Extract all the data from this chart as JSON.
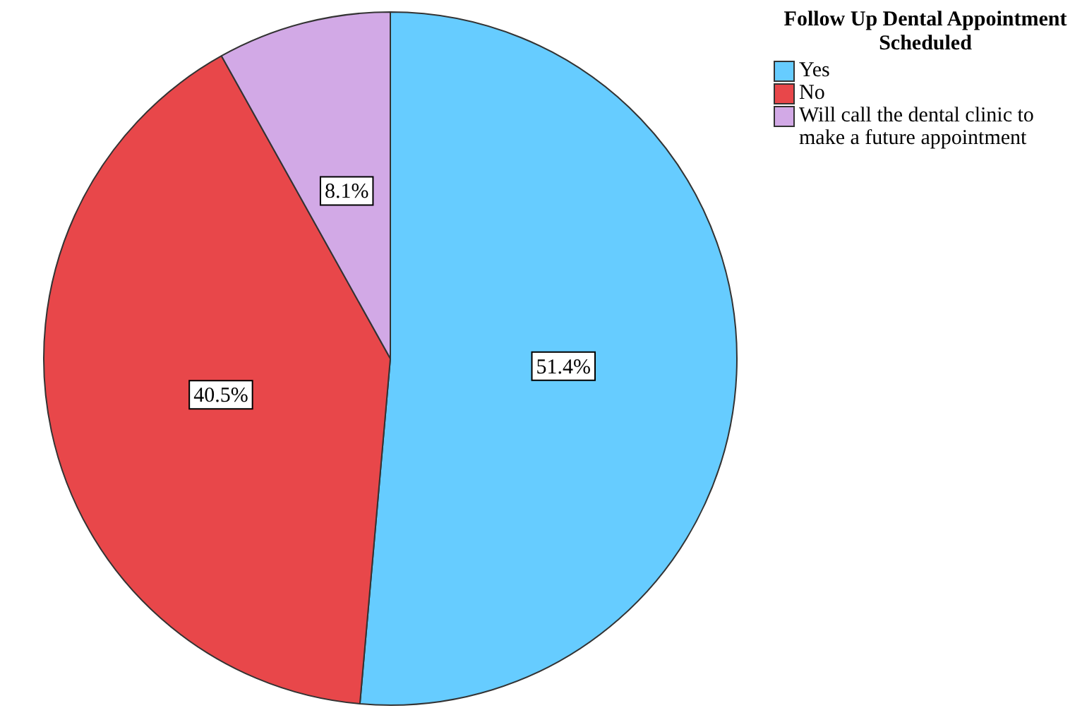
{
  "chart_data": {
    "type": "pie",
    "legend_title": "Follow Up Dental Appointment Scheduled",
    "categories": [
      "Yes",
      "No",
      "Will call the dental clinic to make a future appointment"
    ],
    "values": [
      51.4,
      40.5,
      8.1
    ],
    "colors": [
      "#66ccff",
      "#e8474a",
      "#d2a9e6"
    ],
    "value_labels": [
      "51.4%",
      "40.5%",
      "8.1%"
    ],
    "legend": "top right"
  }
}
